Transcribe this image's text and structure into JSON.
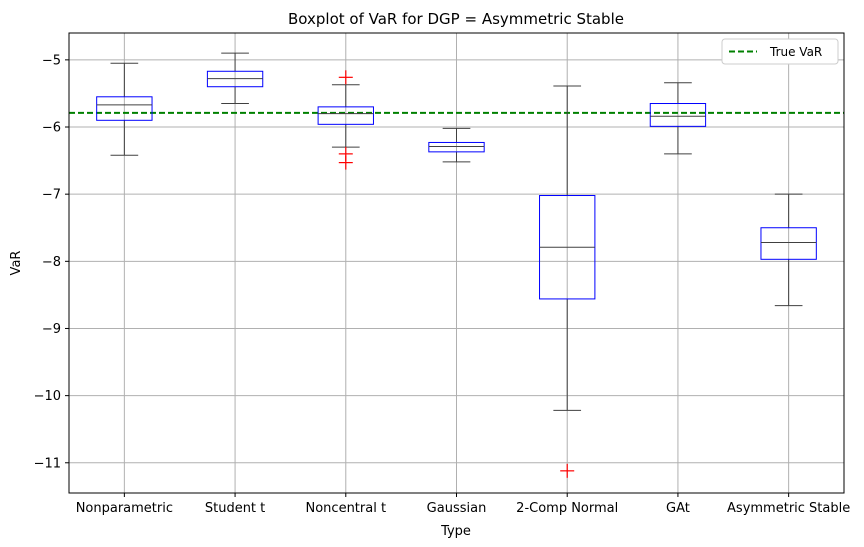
{
  "chart_data": {
    "type": "boxplot",
    "title": "Boxplot of VaR for DGP = Asymmetric Stable",
    "xlabel": "Type",
    "ylabel": "VaR",
    "ylim": [
      -11.45,
      -4.6
    ],
    "yticks": [
      -11,
      -10,
      -9,
      -8,
      -7,
      -6,
      -5
    ],
    "grid": true,
    "legend_position": "top-right",
    "reference_line": {
      "name": "True VaR",
      "y": -5.79,
      "color": "#008000",
      "style": "dashed"
    },
    "box_color": "#0000ff",
    "whisker_color": "#404040",
    "median_color": "#404040",
    "outlier_color": "#ff0000",
    "categories": [
      "Nonparametric",
      "Student t",
      "Noncentral t",
      "Gaussian",
      "2-Comp Normal",
      "GAt",
      "Asymmetric Stable"
    ],
    "boxes": [
      {
        "category": "Nonparametric",
        "whisker_high": -5.05,
        "q3": -5.55,
        "median": -5.67,
        "q1": -5.9,
        "whisker_low": -6.42,
        "outliers": []
      },
      {
        "category": "Student t",
        "whisker_high": -4.9,
        "q3": -5.17,
        "median": -5.28,
        "q1": -5.4,
        "whisker_low": -5.65,
        "outliers": []
      },
      {
        "category": "Noncentral t",
        "whisker_high": -5.37,
        "q3": -5.7,
        "median": -5.8,
        "q1": -5.96,
        "whisker_low": -6.3,
        "outliers": [
          -5.26,
          -6.4,
          -6.53
        ]
      },
      {
        "category": "Gaussian",
        "whisker_high": -6.02,
        "q3": -6.23,
        "median": -6.29,
        "q1": -6.37,
        "whisker_low": -6.52,
        "outliers": []
      },
      {
        "category": "2-Comp Normal",
        "whisker_high": -5.39,
        "q3": -7.02,
        "median": -7.79,
        "q1": -8.56,
        "whisker_low": -10.22,
        "outliers": [
          -11.12
        ]
      },
      {
        "category": "GAt",
        "whisker_high": -5.34,
        "q3": -5.65,
        "median": -5.84,
        "q1": -5.99,
        "whisker_low": -6.4,
        "outliers": []
      },
      {
        "category": "Asymmetric Stable",
        "whisker_high": -7.0,
        "q3": -7.5,
        "median": -7.72,
        "q1": -7.97,
        "whisker_low": -8.66,
        "outliers": []
      }
    ]
  }
}
